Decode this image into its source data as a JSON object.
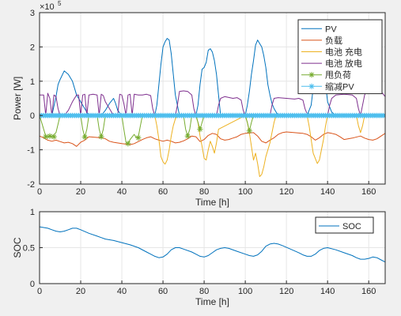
{
  "chart_data": [
    {
      "type": "line",
      "title": "",
      "xlabel": "Time [h]",
      "ylabel": "Power [W]",
      "y_exponent_label": "×10",
      "y_exponent": "5",
      "xlim": [
        0,
        168
      ],
      "ylim": [
        -2,
        3
      ],
      "xticks": [
        0,
        20,
        40,
        60,
        80,
        100,
        120,
        140,
        160
      ],
      "yticks": [
        -2,
        -1,
        0,
        1,
        2,
        3
      ],
      "grid": true,
      "legend_position": "top-right",
      "series": [
        {
          "name": "PV",
          "color": "#0072bd",
          "x": [
            0,
            6,
            8,
            9,
            10,
            12,
            14,
            16,
            18,
            24,
            26,
            28,
            30,
            32,
            34,
            36,
            37,
            38,
            40,
            44,
            47,
            50,
            52,
            54,
            56,
            57,
            58,
            59,
            60,
            61,
            62,
            63,
            64,
            65,
            66,
            68,
            70,
            72,
            74,
            76,
            77,
            78,
            79,
            80,
            81,
            82,
            83,
            84,
            85,
            86,
            87,
            88,
            90,
            92,
            94,
            96,
            98,
            100,
            101,
            102,
            103,
            104,
            105,
            106,
            107,
            108,
            109,
            110,
            111,
            112,
            113,
            114,
            116,
            118,
            120,
            124,
            128,
            130,
            132,
            133,
            134,
            135,
            136,
            137,
            138,
            139,
            140,
            142,
            144,
            146,
            148,
            152,
            156,
            158,
            160,
            162,
            164,
            166,
            168
          ],
          "y": [
            0,
            0,
            0.55,
            0.9,
            1.05,
            1.3,
            1.2,
            1.0,
            0.6,
            0,
            0,
            0,
            0,
            0.15,
            0.35,
            0.5,
            0.35,
            0.15,
            0,
            0,
            0,
            0,
            0,
            0,
            0,
            0.3,
            0.9,
            1.5,
            2.0,
            2.15,
            2.25,
            2.2,
            1.8,
            1.2,
            0.6,
            0,
            0,
            0,
            0,
            0,
            0.3,
            0.9,
            1.35,
            1.4,
            1.55,
            1.9,
            1.95,
            1.85,
            1.6,
            1.2,
            0.6,
            0,
            0,
            0,
            0,
            0,
            0,
            0,
            0.3,
            0.7,
            1.2,
            1.6,
            2.05,
            2.2,
            2.1,
            2.0,
            1.75,
            1.4,
            0.9,
            0.6,
            0.35,
            0.2,
            0,
            0,
            0,
            0,
            0,
            0,
            0.3,
            0.8,
            1.2,
            1.5,
            1.8,
            1.65,
            1.4,
            0.9,
            0.4,
            0.1,
            0,
            0,
            0,
            0,
            0,
            0,
            0,
            0,
            0,
            0,
            0
          ]
        },
        {
          "name": "负载",
          "color": "#d95319",
          "x": [
            0,
            2,
            4,
            6,
            8,
            10,
            12,
            14,
            16,
            18,
            20,
            22,
            24,
            28,
            30,
            32,
            34,
            36,
            40,
            44,
            46,
            48,
            50,
            52,
            54,
            56,
            58,
            60,
            62,
            64,
            66,
            68,
            70,
            72,
            74,
            76,
            78,
            80,
            82,
            84,
            86,
            88,
            90,
            92,
            94,
            96,
            98,
            100,
            104,
            106,
            108,
            110,
            112,
            114,
            116,
            118,
            120,
            124,
            128,
            130,
            132,
            134,
            136,
            138,
            140,
            142,
            144,
            146,
            148,
            152,
            156,
            158,
            160,
            162,
            164,
            166,
            168
          ],
          "y": [
            -0.6,
            -0.65,
            -0.72,
            -0.75,
            -0.72,
            -0.76,
            -0.8,
            -0.78,
            -0.82,
            -0.9,
            -0.78,
            -0.72,
            -0.62,
            -0.64,
            -0.65,
            -0.68,
            -0.75,
            -0.78,
            -0.82,
            -0.85,
            -0.82,
            -0.76,
            -0.7,
            -0.65,
            -0.62,
            -0.68,
            -0.72,
            -0.75,
            -0.72,
            -0.75,
            -0.8,
            -0.78,
            -0.74,
            -0.68,
            -0.6,
            -0.62,
            -0.76,
            -0.7,
            -0.58,
            -0.52,
            -0.55,
            -0.68,
            -0.72,
            -0.7,
            -0.66,
            -0.62,
            -0.55,
            -0.52,
            -0.5,
            -0.6,
            -0.75,
            -0.8,
            -0.72,
            -0.65,
            -0.55,
            -0.5,
            -0.48,
            -0.5,
            -0.52,
            -0.55,
            -0.62,
            -0.72,
            -0.65,
            -0.55,
            -0.5,
            -0.52,
            -0.55,
            -0.62,
            -0.7,
            -0.66,
            -0.6,
            -0.66,
            -0.7,
            -0.72,
            -0.68,
            -0.6,
            -0.52
          ]
        },
        {
          "name": "电池 充电",
          "color": "#edb120",
          "x": [
            0,
            56,
            57,
            58,
            59,
            60,
            61,
            62,
            63,
            64,
            65,
            66,
            67,
            76,
            77,
            78,
            79,
            80,
            81,
            82,
            83,
            84,
            85,
            86,
            87,
            100,
            101,
            102,
            103,
            104,
            105,
            106,
            107,
            108,
            109,
            110,
            111,
            112,
            113,
            114,
            115,
            130,
            131,
            132,
            133,
            134,
            135,
            136,
            137,
            138,
            139,
            140,
            154,
            155,
            156,
            157,
            158,
            168
          ],
          "y": [
            0,
            0,
            -0.3,
            -0.7,
            -1.2,
            -1.35,
            -1.42,
            -1.3,
            -1.0,
            -0.6,
            -0.3,
            -0.1,
            0,
            0,
            -0.2,
            -0.6,
            -0.9,
            -1.25,
            -1.3,
            -1.0,
            -0.75,
            -0.9,
            -1.1,
            -0.8,
            -0.4,
            0,
            -0.2,
            -0.5,
            -0.9,
            -1.3,
            -1.1,
            -1.4,
            -1.78,
            -1.72,
            -1.5,
            -1.2,
            -1.0,
            -0.8,
            -0.5,
            -0.2,
            0,
            0,
            -0.3,
            -0.7,
            -1.1,
            -1.25,
            -1.4,
            -1.3,
            -1.0,
            -0.7,
            -0.3,
            0,
            0,
            -0.3,
            -0.5,
            -0.3,
            0,
            0
          ]
        },
        {
          "name": "电池 放电",
          "color": "#7e2f8e",
          "x": [
            0,
            2,
            3,
            4,
            5,
            6,
            7,
            8,
            9,
            10,
            12,
            14,
            16,
            18,
            19,
            20,
            21,
            22,
            23,
            24,
            26,
            28,
            29,
            30,
            31,
            32,
            34,
            36,
            38,
            39,
            40,
            41,
            42,
            43,
            44,
            45,
            46,
            48,
            50,
            52,
            54,
            55,
            56,
            57,
            66,
            67,
            68,
            70,
            72,
            74,
            75,
            76,
            77,
            86,
            87,
            88,
            90,
            94,
            96,
            98,
            99,
            100,
            101,
            112,
            113,
            114,
            116,
            120,
            124,
            126,
            128,
            129,
            130,
            131,
            140,
            141,
            142,
            144,
            148,
            152,
            154,
            155,
            156,
            157,
            158,
            159,
            160,
            162,
            164,
            166,
            168
          ],
          "y": [
            0.6,
            0.6,
            0,
            0.65,
            0.5,
            0,
            0.6,
            0.55,
            0.2,
            0,
            0,
            0.15,
            0.4,
            0.6,
            0.6,
            0,
            0.6,
            0.62,
            0,
            0.6,
            0.62,
            0.6,
            0,
            0.62,
            0.58,
            0.4,
            0.2,
            0,
            0,
            0.62,
            0.6,
            0.35,
            0,
            0.6,
            0.62,
            0,
            0.62,
            0.6,
            0.6,
            0.62,
            0.58,
            0.2,
            0,
            0,
            0,
            0.3,
            0.7,
            0.72,
            0.7,
            0.6,
            0.2,
            0,
            0,
            0,
            0.3,
            0.5,
            0.55,
            0.5,
            0.52,
            0.45,
            0.15,
            0,
            0,
            0,
            0.3,
            0.5,
            0.52,
            0.5,
            0.48,
            0.5,
            0.45,
            0.2,
            0.05,
            0,
            0,
            0.3,
            0.5,
            0.6,
            0.62,
            0.6,
            0.5,
            0.2,
            0,
            0.3,
            0.6,
            0.72,
            0.7,
            0.75,
            0.8,
            0.7,
            0.55
          ]
        },
        {
          "name": "甩负荷",
          "color": "#77ac30",
          "x": [
            0,
            3,
            4,
            5,
            6,
            8,
            10,
            20,
            21,
            22,
            23,
            24,
            28,
            29,
            30,
            31,
            32,
            40,
            41,
            42,
            43,
            44,
            46,
            47,
            48,
            49,
            50,
            66,
            68,
            70,
            71,
            72,
            73,
            74,
            76,
            77,
            78,
            79,
            80,
            98,
            100,
            101,
            102,
            103,
            104,
            168
          ],
          "y": [
            0,
            -0.6,
            -0.62,
            -0.6,
            -0.62,
            -0.5,
            0,
            0,
            -0.4,
            -0.63,
            -0.4,
            0,
            0,
            -0.4,
            -0.62,
            -0.4,
            0,
            0,
            -0.4,
            -0.78,
            -0.82,
            -0.7,
            -0.55,
            -0.65,
            -0.62,
            -0.3,
            0,
            0,
            0,
            0,
            -0.4,
            -0.6,
            -0.4,
            0,
            0,
            -0.2,
            -0.4,
            -0.2,
            0,
            0,
            0,
            -0.2,
            -0.45,
            -0.2,
            0,
            0
          ],
          "marker_points": [
            [
              3,
              -0.62
            ],
            [
              5,
              -0.6
            ],
            [
              7,
              -0.62
            ],
            [
              22,
              -0.63
            ],
            [
              30,
              -0.62
            ],
            [
              43,
              -0.82
            ],
            [
              48,
              -0.65
            ],
            [
              72,
              -0.6
            ],
            [
              78,
              -0.4
            ],
            [
              102,
              -0.45
            ]
          ]
        },
        {
          "name": "缩减PV",
          "color": "#4dbeee",
          "x": [
            0,
            168
          ],
          "y": [
            0,
            0
          ],
          "marker_step": 1
        }
      ]
    },
    {
      "type": "line",
      "title": "",
      "xlabel": "Time [h]",
      "ylabel": "SOC",
      "xlim": [
        0,
        168
      ],
      "ylim": [
        0,
        1
      ],
      "xticks": [
        0,
        20,
        40,
        60,
        80,
        100,
        120,
        140,
        160
      ],
      "yticks": [
        0,
        0.5,
        1
      ],
      "grid": true,
      "legend_position": "top-right",
      "series": [
        {
          "name": "SOC",
          "color": "#0072bd",
          "x": [
            0,
            2,
            4,
            6,
            8,
            10,
            12,
            14,
            16,
            18,
            20,
            24,
            28,
            32,
            36,
            40,
            44,
            48,
            52,
            54,
            56,
            58,
            60,
            62,
            64,
            66,
            68,
            70,
            74,
            76,
            78,
            80,
            82,
            84,
            86,
            88,
            90,
            92,
            96,
            100,
            102,
            104,
            106,
            108,
            110,
            112,
            114,
            116,
            118,
            122,
            126,
            128,
            130,
            132,
            134,
            136,
            138,
            140,
            144,
            148,
            152,
            154,
            156,
            158,
            160,
            162,
            164,
            166,
            168
          ],
          "y": [
            0.79,
            0.78,
            0.77,
            0.75,
            0.73,
            0.72,
            0.73,
            0.75,
            0.77,
            0.77,
            0.75,
            0.7,
            0.66,
            0.62,
            0.6,
            0.57,
            0.54,
            0.5,
            0.44,
            0.41,
            0.38,
            0.36,
            0.37,
            0.41,
            0.47,
            0.5,
            0.5,
            0.48,
            0.44,
            0.41,
            0.38,
            0.37,
            0.39,
            0.43,
            0.47,
            0.49,
            0.5,
            0.49,
            0.45,
            0.41,
            0.39,
            0.38,
            0.4,
            0.45,
            0.52,
            0.55,
            0.56,
            0.55,
            0.53,
            0.48,
            0.43,
            0.4,
            0.38,
            0.38,
            0.41,
            0.46,
            0.49,
            0.5,
            0.47,
            0.43,
            0.39,
            0.36,
            0.34,
            0.34,
            0.35,
            0.37,
            0.36,
            0.33,
            0.3
          ]
        }
      ]
    }
  ]
}
